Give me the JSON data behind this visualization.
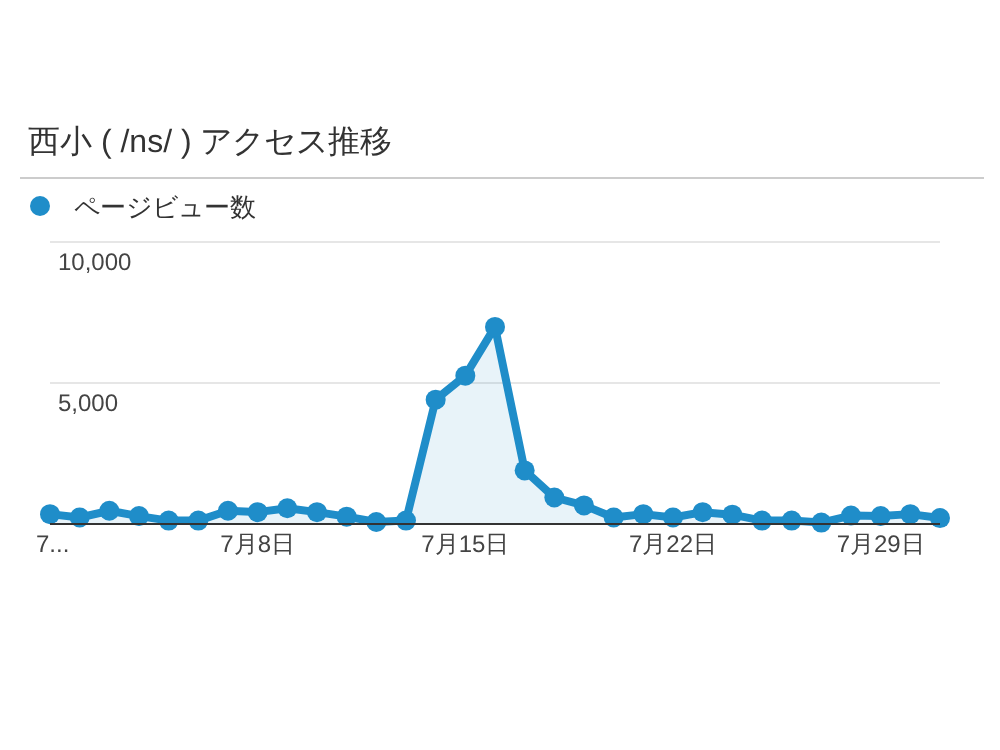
{
  "chart_data": {
    "type": "area",
    "title": "西小 ( /ns/ ) アクセス推移",
    "categories": [
      "7...",
      null,
      null,
      null,
      null,
      null,
      null,
      "7月8日",
      null,
      null,
      null,
      null,
      null,
      null,
      "7月15日",
      null,
      null,
      null,
      null,
      null,
      null,
      "7月22日",
      null,
      null,
      null,
      null,
      null,
      null,
      "7月29日",
      null,
      null
    ],
    "series": [
      {
        "name": "ページビュー数",
        "color": "#1f8dc9",
        "values": [
          350,
          230,
          470,
          280,
          120,
          120,
          470,
          420,
          560,
          420,
          260,
          70,
          120,
          4410,
          5260,
          6990,
          1900,
          940,
          660,
          230,
          350,
          230,
          420,
          330,
          120,
          120,
          50,
          300,
          280,
          350,
          210
        ]
      }
    ],
    "ylim": [
      0,
      10000
    ],
    "yticks": [
      {
        "value": 0,
        "label": null
      },
      {
        "value": 5000,
        "label": "5,000"
      },
      {
        "value": 10000,
        "label": "10,000"
      }
    ],
    "grid": "y",
    "legend": "top left",
    "marker": "circle"
  }
}
